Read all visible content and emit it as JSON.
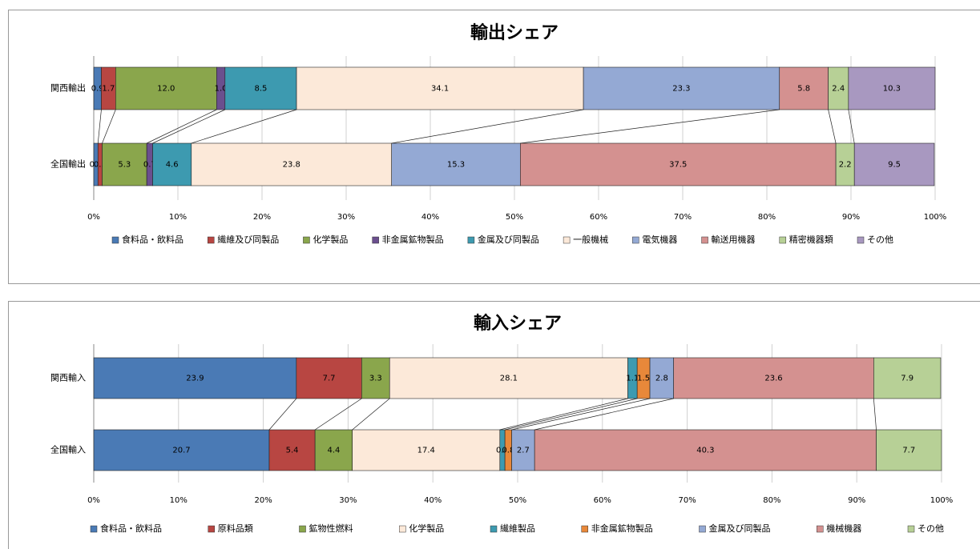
{
  "chart_data": [
    {
      "type": "bar",
      "stacked": true,
      "horizontal": true,
      "title": "輸出シェア",
      "categories": [
        "関西輸出",
        "全国輸出"
      ],
      "series": [
        {
          "name": "食料品・飲料品",
          "color": "#4a7ab5",
          "values": [
            0.9,
            0.5
          ]
        },
        {
          "name": "繊維及び同製品",
          "color": "#b84642",
          "values": [
            1.7,
            0.5
          ]
        },
        {
          "name": "化学製品",
          "color": "#8aa64c",
          "values": [
            12,
            5.3
          ],
          "value_labels": [
            "12.0",
            "5.3"
          ]
        },
        {
          "name": "非金属鉱物製品",
          "color": "#6b4f8e",
          "values": [
            1,
            0.7
          ],
          "value_labels": [
            "1.0",
            "0.7"
          ]
        },
        {
          "name": "金属及び同製品",
          "color": "#3d9ab0",
          "values": [
            8.5,
            4.6
          ]
        },
        {
          "name": "一般機械",
          "color": "#fce9d9",
          "values": [
            34.1,
            23.8
          ]
        },
        {
          "name": "電気機器",
          "color": "#94a9d4",
          "values": [
            23.3,
            15.3
          ]
        },
        {
          "name": "輸送用機器",
          "color": "#d49190",
          "values": [
            5.8,
            37.5
          ]
        },
        {
          "name": "精密機器類",
          "color": "#b7d096",
          "values": [
            2.4,
            2.2
          ]
        },
        {
          "name": "その他",
          "color": "#a898c0",
          "values": [
            10.3,
            9.5
          ]
        }
      ],
      "xlim": [
        0,
        100
      ],
      "xticks": [
        {
          "value": 0,
          "label": "0%"
        },
        {
          "value": 10,
          "label": "10%"
        },
        {
          "value": 20,
          "label": "20%"
        },
        {
          "value": 30,
          "label": "30%"
        },
        {
          "value": 40,
          "label": "40%"
        },
        {
          "value": 50,
          "label": "50%"
        },
        {
          "value": 60,
          "label": "60%"
        },
        {
          "value": 70,
          "label": "70%"
        },
        {
          "value": 80,
          "label": "80%"
        },
        {
          "value": 90,
          "label": "90%"
        },
        {
          "value": 100,
          "label": "100%"
        }
      ],
      "grid": true,
      "legend": "bottom"
    },
    {
      "type": "bar",
      "stacked": true,
      "horizontal": true,
      "title": "輸入シェア",
      "categories": [
        "関西輸入",
        "全国輸入"
      ],
      "series": [
        {
          "name": "食料品・飲料品",
          "color": "#4a7ab5",
          "values": [
            23.9,
            20.7
          ]
        },
        {
          "name": "原料品類",
          "color": "#b84642",
          "values": [
            7.7,
            5.4
          ]
        },
        {
          "name": "鉱物性燃料",
          "color": "#8aa64c",
          "values": [
            3.3,
            4.4
          ]
        },
        {
          "name": "化学製品",
          "color": "#fce9d9",
          "values": [
            28.1,
            17.4
          ]
        },
        {
          "name": "繊維製品",
          "color": "#3d9ab0",
          "values": [
            1.1,
            0.6
          ]
        },
        {
          "name": "非金属鉱物製品",
          "color": "#e8883a",
          "values": [
            1.5,
            0.8
          ]
        },
        {
          "name": "金属及び同製品",
          "color": "#94a9d4",
          "values": [
            2.8,
            2.7
          ]
        },
        {
          "name": "機械機器",
          "color": "#d49190",
          "values": [
            23.6,
            40.3
          ]
        },
        {
          "name": "その他",
          "color": "#b7d096",
          "values": [
            7.9,
            7.7
          ]
        }
      ],
      "xlim": [
        0,
        100
      ],
      "xticks": [
        {
          "value": 0,
          "label": "0%"
        },
        {
          "value": 10,
          "label": "10%"
        },
        {
          "value": 20,
          "label": "20%"
        },
        {
          "value": 30,
          "label": "30%"
        },
        {
          "value": 40,
          "label": "40%"
        },
        {
          "value": 50,
          "label": "50%"
        },
        {
          "value": 60,
          "label": "60%"
        },
        {
          "value": 70,
          "label": "70%"
        },
        {
          "value": 80,
          "label": "80%"
        },
        {
          "value": 90,
          "label": "90%"
        },
        {
          "value": 100,
          "label": "100%"
        }
      ],
      "grid": true,
      "legend": "bottom"
    }
  ]
}
